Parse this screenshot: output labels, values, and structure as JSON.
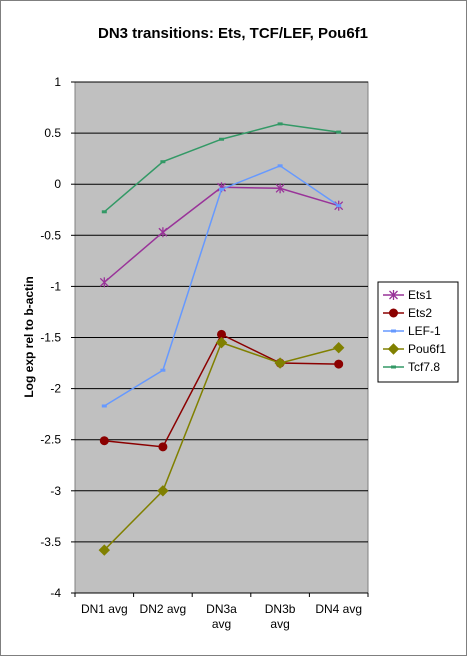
{
  "chart_data": {
    "type": "line",
    "title": "DN3 transitions: Ets, TCF/LEF, Pou6f1",
    "xlabel": "",
    "ylabel": "Log exp rel to b-actin",
    "categories": [
      [
        "DN1 avg"
      ],
      [
        "DN2 avg"
      ],
      [
        "DN3a",
        "avg"
      ],
      [
        "DN3b",
        "avg"
      ],
      [
        "DN4 avg"
      ]
    ],
    "ylim": [
      -4,
      1
    ],
    "yticks": [
      1,
      0.5,
      0,
      -0.5,
      -1,
      -1.5,
      -2,
      -2.5,
      -3,
      -3.5,
      -4
    ],
    "grid": true,
    "legend_position": "right",
    "plot_background": "#c0c0c0",
    "series": [
      {
        "name": "Ets1",
        "color": "#993399",
        "marker": "star",
        "values": [
          -0.96,
          -0.47,
          -0.03,
          -0.04,
          -0.21
        ]
      },
      {
        "name": "Ets2",
        "color": "#8b0000",
        "marker": "circle",
        "values": [
          -2.51,
          -2.57,
          -1.47,
          -1.75,
          -1.76
        ]
      },
      {
        "name": "LEF-1",
        "color": "#6699ff",
        "marker": "dash",
        "values": [
          -2.17,
          -1.82,
          -0.05,
          0.18,
          -0.21
        ]
      },
      {
        "name": "Pou6f1",
        "color": "#808000",
        "marker": "diamond",
        "values": [
          -3.58,
          -3.0,
          -1.55,
          -1.75,
          -1.6
        ]
      },
      {
        "name": "Tcf7.8",
        "color": "#339966",
        "marker": "dash",
        "values": [
          -0.27,
          0.22,
          0.44,
          0.59,
          0.51
        ]
      }
    ]
  }
}
